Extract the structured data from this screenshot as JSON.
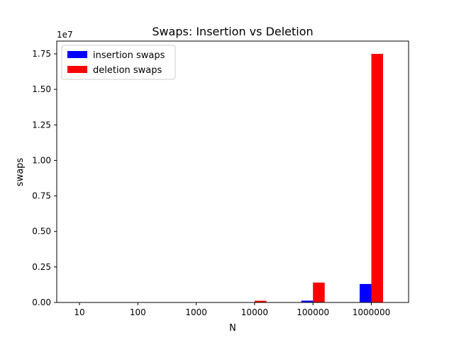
{
  "chart_data": {
    "type": "bar",
    "title": "Swaps: Insertion vs Deletion",
    "xlabel": "N",
    "ylabel": "swaps",
    "y_offset_label": "1e7",
    "categories": [
      "10",
      "100",
      "1000",
      "10000",
      "100000",
      "1000000"
    ],
    "ylim": [
      0,
      18400000
    ],
    "y_ticks": [
      0,
      2500000,
      5000000,
      7500000,
      10000000,
      12500000,
      15000000,
      17500000
    ],
    "y_tick_labels": [
      "0.00",
      "0.25",
      "0.50",
      "0.75",
      "1.00",
      "1.25",
      "1.50",
      "1.75"
    ],
    "series": [
      {
        "name": "insertion swaps",
        "color": "#0000ff",
        "values": [
          5,
          110,
          1300,
          13000,
          130000,
          1300000
        ]
      },
      {
        "name": "deletion swaps",
        "color": "#ff0000",
        "values": [
          20,
          470,
          8500,
          120000,
          1400000,
          17500000
        ]
      }
    ],
    "legend_position": "upper-left",
    "grid": false
  }
}
